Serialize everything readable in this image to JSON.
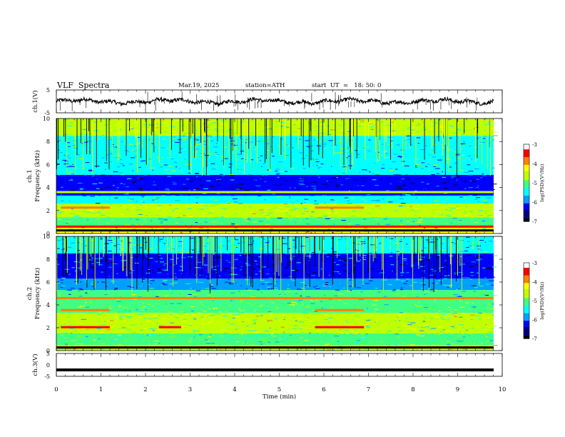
{
  "header": {
    "title": "VLF  Spectra",
    "date": "Mar.19, 2025",
    "station": "station=ATH",
    "start": "start  UT  =   18: 50: 0"
  },
  "chart_data": [
    {
      "type": "line",
      "name": "ch1-waveform",
      "ylabel": "ch.1(V)",
      "ylim": [
        -5,
        5
      ],
      "yticks": [
        "5",
        "-5"
      ],
      "xlim": [
        0,
        10
      ],
      "x_unit": "min",
      "baseline": 0,
      "note_visible": "noisy waveform with frequent spikes"
    },
    {
      "type": "heatmap",
      "name": "ch1-spectrogram",
      "ylabel_top": "ch.1",
      "ylabel": "Frequency  (kHz)",
      "ylim": [
        0,
        10
      ],
      "yticks": [
        "0",
        "2",
        "4",
        "6",
        "8",
        "10"
      ],
      "xlim": [
        0,
        10
      ],
      "bands": [
        {
          "from": 0.0,
          "to": 0.5,
          "level": -4.3
        },
        {
          "from": 0.5,
          "to": 1.4,
          "level": -5.2
        },
        {
          "from": 1.4,
          "to": 2.6,
          "level": -4.8
        },
        {
          "from": 2.6,
          "to": 3.3,
          "level": -5.3
        },
        {
          "from": 3.3,
          "to": 5.1,
          "level": -6.3
        },
        {
          "from": 5.1,
          "to": 6.4,
          "level": -5.5
        },
        {
          "from": 6.4,
          "to": 8.5,
          "level": -5.3
        },
        {
          "from": 8.5,
          "to": 10.0,
          "level": -4.8
        }
      ],
      "lines": [
        {
          "f": 2.25,
          "level": -3.8,
          "segments": [
            [
              0.1,
              1.2
            ],
            [
              5.8,
              6.9
            ]
          ]
        },
        {
          "f": 0.6,
          "level": -3.6,
          "segments": [
            [
              0,
              9.8
            ]
          ]
        },
        {
          "f": 3.6,
          "level": -4.6,
          "segments": [
            [
              0,
              9.8
            ]
          ]
        }
      ],
      "colorbar": {
        "label": "log(PSD)(V²/Hz)",
        "ticks": [
          "-3",
          "-4",
          "-5",
          "-6",
          "-7"
        ],
        "range": [
          -7,
          -3
        ]
      }
    },
    {
      "type": "heatmap",
      "name": "ch2-spectrogram",
      "ylabel_top": "ch.2",
      "ylabel": "Frequency  (kHz)",
      "ylim": [
        0,
        10
      ],
      "yticks": [
        "0",
        "2",
        "4",
        "6",
        "8",
        "10"
      ],
      "xlim": [
        0,
        10
      ],
      "bands": [
        {
          "from": 0.0,
          "to": 0.5,
          "level": -4.5
        },
        {
          "from": 0.5,
          "to": 1.5,
          "level": -5.0
        },
        {
          "from": 1.5,
          "to": 3.3,
          "level": -4.8
        },
        {
          "from": 3.3,
          "to": 4.5,
          "level": -4.9
        },
        {
          "from": 4.5,
          "to": 5.3,
          "level": -5.2
        },
        {
          "from": 5.3,
          "to": 6.3,
          "level": -5.7
        },
        {
          "from": 6.3,
          "to": 8.5,
          "level": -6.2
        },
        {
          "from": 8.5,
          "to": 10.0,
          "level": -5.4
        }
      ],
      "lines": [
        {
          "f": 2.05,
          "level": -3.5,
          "segments": [
            [
              0.1,
              1.2
            ],
            [
              2.3,
              2.8
            ],
            [
              5.8,
              6.9
            ]
          ]
        },
        {
          "f": 3.55,
          "level": -3.7,
          "segments": [
            [
              0.1,
              1.2
            ],
            [
              5.8,
              6.9
            ]
          ]
        },
        {
          "f": 4.6,
          "level": -3.9,
          "segments": [
            [
              0,
              9.8
            ]
          ]
        },
        {
          "f": 0.3,
          "level": -4.0,
          "segments": [
            [
              0,
              9.8
            ]
          ]
        }
      ],
      "colorbar": {
        "label": "log(PSD)(V²/Hz)",
        "ticks": [
          "-3",
          "-4",
          "-5",
          "-6",
          "-7"
        ],
        "range": [
          -7,
          -3
        ]
      }
    },
    {
      "type": "line",
      "name": "ch3-waveform",
      "ylabel": "ch.3(V)",
      "ylim": [
        -5,
        5
      ],
      "yticks": [
        "5",
        "0",
        "-5"
      ],
      "xlim": [
        0,
        10
      ],
      "baseline": -2.2,
      "note_visible": "flat thick trace"
    }
  ],
  "x_axis": {
    "label": "Time  (min)",
    "ticks": [
      "0",
      "1",
      "2",
      "3",
      "4",
      "5",
      "6",
      "7",
      "8",
      "9",
      "10"
    ]
  },
  "colors": {
    "colormap": [
      "#000000",
      "#00007f",
      "#0000ff",
      "#00a0ff",
      "#00ffff",
      "#40ff80",
      "#c0ff00",
      "#ffff00",
      "#ff8000",
      "#ff0000",
      "#ffffff"
    ]
  }
}
